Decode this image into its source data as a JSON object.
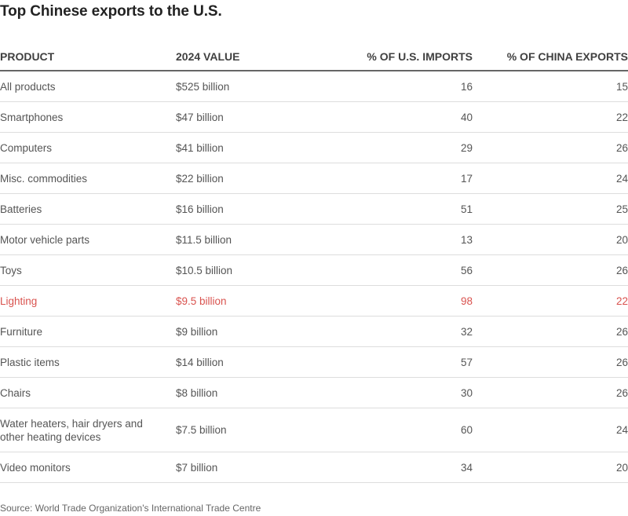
{
  "chart_data": {
    "type": "table",
    "title": "Top Chinese exports to the U.S.",
    "columns": [
      "PRODUCT",
      "2024 VALUE",
      "% OF U.S. IMPORTS",
      "% OF CHINA EXPORTS"
    ],
    "rows": [
      {
        "product": "All products",
        "value": "$525 billion",
        "us_imports_pct": 16,
        "china_exports_pct": 15,
        "highlight": false
      },
      {
        "product": "Smartphones",
        "value": "$47 billion",
        "us_imports_pct": 40,
        "china_exports_pct": 22,
        "highlight": false
      },
      {
        "product": "Computers",
        "value": "$41 billion",
        "us_imports_pct": 29,
        "china_exports_pct": 26,
        "highlight": false
      },
      {
        "product": "Misc. commodities",
        "value": "$22 billion",
        "us_imports_pct": 17,
        "china_exports_pct": 24,
        "highlight": false
      },
      {
        "product": "Batteries",
        "value": "$16 billion",
        "us_imports_pct": 51,
        "china_exports_pct": 25,
        "highlight": false
      },
      {
        "product": "Motor vehicle parts",
        "value": "$11.5 billion",
        "us_imports_pct": 13,
        "china_exports_pct": 20,
        "highlight": false
      },
      {
        "product": "Toys",
        "value": "$10.5 billion",
        "us_imports_pct": 56,
        "china_exports_pct": 26,
        "highlight": false
      },
      {
        "product": "Lighting",
        "value": "$9.5 billion",
        "us_imports_pct": 98,
        "china_exports_pct": 22,
        "highlight": true
      },
      {
        "product": "Furniture",
        "value": "$9 billion",
        "us_imports_pct": 32,
        "china_exports_pct": 26,
        "highlight": false
      },
      {
        "product": "Plastic items",
        "value": "$14 billion",
        "us_imports_pct": 57,
        "china_exports_pct": 26,
        "highlight": false
      },
      {
        "product": "Chairs",
        "value": "$8 billion",
        "us_imports_pct": 30,
        "china_exports_pct": 26,
        "highlight": false
      },
      {
        "product": "Water heaters, hair dryers and other heating devices",
        "value": "$7.5 billion",
        "us_imports_pct": 60,
        "china_exports_pct": 24,
        "highlight": false
      },
      {
        "product": "Video monitors",
        "value": "$7 billion",
        "us_imports_pct": 34,
        "china_exports_pct": 20,
        "highlight": false
      }
    ],
    "source": "Source: World Trade Organization's International Trade Centre",
    "highlight_color": "#d9534f"
  }
}
